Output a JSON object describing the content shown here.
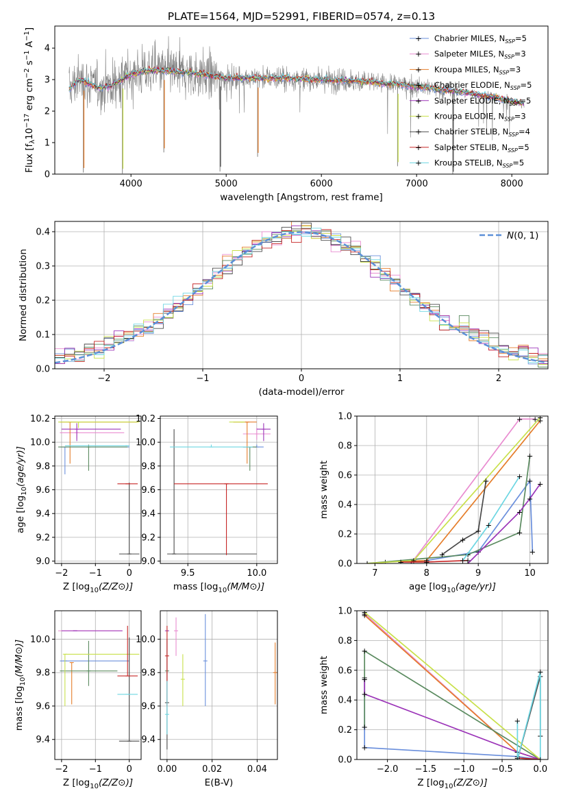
{
  "title": "PLATE=1564, MJD=52991, FIBERID=0574, z=0.13",
  "colors": {
    "Chabrier MILES": "#6a8fdc",
    "Salpeter MILES": "#e98bd0",
    "Kroupa MILES": "#e57d2a",
    "Chabrier ELODIE": "#5a8a5f",
    "Salpeter ELODIE": "#9b33b8",
    "Kroupa ELODIE": "#c8e04a",
    "Chabrier STELIB": "#4a4a4a",
    "Salpeter STELIB": "#c62424",
    "Kroupa STELIB": "#6cd6e2",
    "observed": "#808080"
  },
  "chart_data": [
    {
      "type": "line",
      "xlabel": "wavelength [Angstrom, rest frame]",
      "ylabel": "Flux [f_λ10^-17 erg cm^-2 s^-1 A^-1]",
      "xlim": [
        3200,
        8380
      ],
      "ylim": [
        0,
        4.7
      ],
      "xticks": [
        4000,
        5000,
        6000,
        7000,
        8000
      ],
      "yticks": [
        0,
        1,
        2,
        3,
        4
      ],
      "grid": false,
      "legend_position": "right",
      "legend": [
        "Chabrier MILES, N_SSP=5",
        "Salpeter MILES, N_SSP=3",
        "Kroupa MILES, N_SSP=3",
        "Chabrier ELODIE, N_SSP=5",
        "Salpeter ELODIE, N_SSP=5",
        "Kroupa ELODIE, N_SSP=3",
        "Chabrier STELIB, N_SSP=4",
        "Salpeter STELIB, N_SSP=5",
        "Kroupa STELIB, N_SSP=5"
      ],
      "continuum": {
        "x": [
          3350,
          3450,
          3550,
          3650,
          3800,
          3950,
          4100,
          4300,
          4500,
          4800,
          5000,
          5300,
          5600,
          6000,
          6400,
          6800,
          7200,
          7500,
          7800,
          8100
        ],
        "y": [
          2.7,
          3.0,
          2.9,
          2.75,
          2.8,
          3.1,
          3.25,
          3.3,
          3.25,
          3.15,
          3.05,
          3.05,
          3.05,
          3.0,
          2.95,
          2.85,
          2.7,
          2.6,
          2.45,
          2.25
        ]
      },
      "absorption_spikes": [
        {
          "x": 3500,
          "depth": 2.9
        },
        {
          "x": 3910,
          "depth": 3.0
        },
        {
          "x": 4345,
          "depth": 2.6
        },
        {
          "x": 4935,
          "depth": 3.0
        },
        {
          "x": 5330,
          "depth": 2.5
        },
        {
          "x": 6800,
          "depth": 2.6
        },
        {
          "x": 7380,
          "depth": 2.7
        }
      ]
    },
    {
      "type": "bar",
      "xlabel": "(data-model)/error",
      "ylabel": "Normed distribution",
      "xlim": [
        -2.5,
        2.5
      ],
      "ylim": [
        0,
        0.43
      ],
      "xticks": [
        -2,
        -1,
        0,
        1,
        2
      ],
      "yticks": [
        0.0,
        0.1,
        0.2,
        0.3,
        0.4
      ],
      "grid": true,
      "legend_position": "top-right",
      "legend": [
        "N(0,1)"
      ],
      "bin_width": 0.1,
      "gaussian": {
        "mu": 0,
        "sigma": 1,
        "name": "N(0,1)"
      }
    },
    {
      "type": "scatter",
      "xlabel": "Z [log10(Z/Z⊙)]",
      "ylabel": "age  [log10(age/yr)]",
      "xlim": [
        -2.2,
        0.35
      ],
      "ylim": [
        8.98,
        10.22
      ],
      "xticks": [
        -2,
        -1,
        0
      ],
      "yticks": [
        9.0,
        9.2,
        9.4,
        9.6,
        9.8,
        10.0,
        10.2
      ],
      "grid": true,
      "points": [
        {
          "series": "Chabrier MILES",
          "x": -1.9,
          "xerr": [
            0.15,
            1.9
          ],
          "y": 9.96,
          "yerr": [
            0.23,
            0.0
          ]
        },
        {
          "series": "Salpeter MILES",
          "x": -1.55,
          "xerr": [
            0.5,
            1.4
          ],
          "y": 10.08,
          "yerr": [
            0.05,
            0.05
          ]
        },
        {
          "series": "Kroupa MILES",
          "x": -1.75,
          "xerr": [
            0.3,
            2.0
          ],
          "y": 10.17,
          "yerr": [
            0.35,
            0.0
          ]
        },
        {
          "series": "Chabrier ELODIE",
          "x": -1.2,
          "xerr": [
            0.9,
            1.15
          ],
          "y": 9.96,
          "yerr": [
            0.2,
            0.02
          ]
        },
        {
          "series": "Salpeter ELODIE",
          "x": -1.55,
          "xerr": [
            0.45,
            1.3
          ],
          "y": 10.11,
          "yerr": [
            0.1,
            0.05
          ]
        },
        {
          "series": "Kroupa ELODIE",
          "x": -1.5,
          "xerr": [
            0.6,
            1.8
          ],
          "y": 10.17,
          "yerr": [
            0.05,
            0.0
          ]
        },
        {
          "series": "Chabrier STELIB",
          "x": 0.0,
          "xerr": [
            0.3,
            0.3
          ],
          "y": 9.06,
          "yerr": [
            0.0,
            0.6
          ]
        },
        {
          "series": "Salpeter STELIB",
          "x": -0.05,
          "xerr": [
            0.3,
            0.3
          ],
          "y": 9.65,
          "yerr": [
            0.0,
            0.0
          ]
        },
        {
          "series": "Kroupa STELIB",
          "x": -0.05,
          "xerr": [
            1.85,
            0.0
          ],
          "y": 9.97,
          "yerr": [
            0.0,
            0.0
          ]
        }
      ]
    },
    {
      "type": "scatter",
      "xlabel": "mass [log10(M/M⊙)]",
      "ylabel": "",
      "xlim": [
        9.3,
        10.15
      ],
      "ylim": [
        8.98,
        10.22
      ],
      "xticks": [
        9.5,
        10.0
      ],
      "yticks": [
        9.0,
        9.2,
        9.4,
        9.6,
        9.8,
        10.0,
        10.2
      ],
      "grid": true,
      "points": [
        {
          "series": "Chabrier MILES",
          "x": 10.0,
          "xerr": [
            0.1,
            0.05
          ],
          "y": 9.96,
          "yerr": [
            0.0,
            0.02
          ]
        },
        {
          "series": "Salpeter MILES",
          "x": 10.0,
          "xerr": [
            0.1,
            0.1
          ],
          "y": 10.07,
          "yerr": [
            0.05,
            0.05
          ]
        },
        {
          "series": "Kroupa MILES",
          "x": 9.93,
          "xerr": [
            0.1,
            0.07
          ],
          "y": 10.17,
          "yerr": [
            0.35,
            0.0
          ]
        },
        {
          "series": "Chabrier ELODIE",
          "x": 9.95,
          "xerr": [
            0.05,
            0.05
          ],
          "y": 9.96,
          "yerr": [
            0.2,
            0.0
          ]
        },
        {
          "series": "Salpeter ELODIE",
          "x": 10.05,
          "xerr": [
            0.05,
            0.05
          ],
          "y": 10.11,
          "yerr": [
            0.1,
            0.05
          ]
        },
        {
          "series": "Kroupa ELODIE",
          "x": 9.9,
          "xerr": [
            0.1,
            0.0
          ],
          "y": 10.17,
          "yerr": [
            0.0,
            0.0
          ]
        },
        {
          "series": "Chabrier STELIB",
          "x": 9.4,
          "xerr": [
            0.05,
            0.6
          ],
          "y": 9.06,
          "yerr": [
            0.0,
            1.05
          ]
        },
        {
          "series": "Salpeter STELIB",
          "x": 9.78,
          "xerr": [
            0.38,
            0.3
          ],
          "y": 9.65,
          "yerr": [
            0.6,
            0.0
          ]
        },
        {
          "series": "Kroupa STELIB",
          "x": 9.67,
          "xerr": [
            0.3,
            0.3
          ],
          "y": 9.96,
          "yerr": [
            0.0,
            0.02
          ]
        }
      ]
    },
    {
      "type": "line",
      "xlabel": "age  [log10(age/yr)]",
      "ylabel": "mass weight",
      "xlim": [
        6.65,
        10.35
      ],
      "ylim": [
        0,
        1.0
      ],
      "xticks": [
        7,
        8,
        9,
        10
      ],
      "yticks": [
        0.0,
        0.2,
        0.4,
        0.6,
        0.8,
        1.0
      ],
      "grid": true,
      "series": [
        {
          "name": "Chabrier MILES",
          "x": [
            7.5,
            8.0,
            9.0,
            10.0,
            10.05
          ],
          "y": [
            0.01,
            0.02,
            0.08,
            0.56,
            0.08
          ]
        },
        {
          "name": "Salpeter MILES",
          "x": [
            7.7,
            9.8,
            10.1
          ],
          "y": [
            0.0,
            0.98,
            0.98
          ]
        },
        {
          "name": "Kroupa MILES",
          "x": [
            7.2,
            8.0,
            10.2
          ],
          "y": [
            0.01,
            0.02,
            0.97
          ]
        },
        {
          "name": "Chabrier ELODIE",
          "x": [
            6.85,
            8.8,
            9.8,
            10.0
          ],
          "y": [
            0.0,
            0.06,
            0.21,
            0.73
          ]
        },
        {
          "name": "Salpeter ELODIE",
          "x": [
            8.8,
            9.8,
            10.0,
            10.2
          ],
          "y": [
            0.0,
            0.35,
            0.44,
            0.54
          ]
        },
        {
          "name": "Kroupa ELODIE",
          "x": [
            6.85,
            7.75,
            10.2
          ],
          "y": [
            0.0,
            0.02,
            0.99
          ]
        },
        {
          "name": "Chabrier STELIB",
          "x": [
            8.3,
            8.7,
            9.0,
            9.15
          ],
          "y": [
            0.06,
            0.16,
            0.22,
            0.56
          ]
        },
        {
          "name": "Salpeter STELIB",
          "x": [
            7.5,
            8.0,
            8.8
          ],
          "y": [
            0.01,
            0.01,
            0.02
          ]
        },
        {
          "name": "Kroupa STELIB",
          "x": [
            8.7,
            9.2,
            9.8
          ],
          "y": [
            0.02,
            0.26,
            0.59
          ]
        }
      ]
    },
    {
      "type": "scatter",
      "xlabel": "Z [log10(Z/Z⊙)]",
      "ylabel": "mass [log10(M/M⊙)]",
      "xlim": [
        -2.2,
        0.35
      ],
      "ylim": [
        9.28,
        10.17
      ],
      "xticks": [
        -2,
        -1,
        0
      ],
      "yticks": [
        9.4,
        9.6,
        9.8,
        10.0
      ],
      "grid": true,
      "points": [
        {
          "series": "Chabrier MILES",
          "x": -1.9,
          "xerr": [
            0.15,
            1.9
          ],
          "y": 9.87,
          "yerr": [
            0.0,
            0.0
          ]
        },
        {
          "series": "Salpeter MILES",
          "x": -1.6,
          "xerr": [
            0.5,
            1.4
          ],
          "y": 10.05,
          "yerr": [
            0.0,
            0.0
          ]
        },
        {
          "series": "Kroupa MILES",
          "x": -1.7,
          "xerr": [
            0.0,
            0.0
          ],
          "y": 9.86,
          "yerr": [
            0.25,
            0.0
          ]
        },
        {
          "series": "Chabrier ELODIE",
          "x": -1.2,
          "xerr": [
            0.85,
            0.85
          ],
          "y": 9.81,
          "yerr": [
            0.09,
            0.18
          ]
        },
        {
          "series": "Salpeter ELODIE",
          "x": -1.6,
          "xerr": [
            0.4,
            1.4
          ],
          "y": 10.05,
          "yerr": [
            0.0,
            0.0
          ]
        },
        {
          "series": "Kroupa ELODIE",
          "x": -1.9,
          "xerr": [
            0.0,
            2.2
          ],
          "y": 9.91,
          "yerr": [
            0.31,
            0.0
          ]
        },
        {
          "series": "Chabrier STELIB",
          "x": 0.0,
          "xerr": [
            0.3,
            0.3
          ],
          "y": 9.39,
          "yerr": [
            0.0,
            0.62
          ]
        },
        {
          "series": "Salpeter STELIB",
          "x": -0.05,
          "xerr": [
            0.3,
            0.3
          ],
          "y": 9.78,
          "yerr": [
            0.0,
            0.3
          ]
        },
        {
          "series": "Kroupa STELIB",
          "x": -0.05,
          "xerr": [
            0.3,
            0.3
          ],
          "y": 9.67,
          "yerr": [
            0.0,
            0.0
          ]
        }
      ]
    },
    {
      "type": "scatter",
      "xlabel": "E(B-V)",
      "ylabel": "",
      "xlim": [
        -0.003,
        0.049
      ],
      "ylim": [
        9.28,
        10.17
      ],
      "xticks": [
        0.0,
        0.02,
        0.04
      ],
      "yticks": [
        9.4,
        9.6,
        9.8,
        10.0
      ],
      "grid": true,
      "points": [
        {
          "series": "Chabrier MILES",
          "x": 0.017,
          "xerr": [
            0.0,
            0.0
          ],
          "y": 9.87,
          "yerr": [
            0.27,
            0.28
          ]
        },
        {
          "series": "Salpeter MILES",
          "x": 0.004,
          "xerr": [
            0.0,
            0.0
          ],
          "y": 10.05,
          "yerr": [
            0.15,
            0.08
          ]
        },
        {
          "series": "Kroupa MILES",
          "x": 0.048,
          "xerr": [
            0.0,
            0.0
          ],
          "y": 9.8,
          "yerr": [
            0.19,
            0.18
          ]
        },
        {
          "series": "Chabrier ELODIE",
          "x": 0.0,
          "xerr": [
            0.0,
            0.0
          ],
          "y": 9.81,
          "yerr": [
            0.0,
            0.0
          ]
        },
        {
          "series": "Salpeter ELODIE",
          "x": 0.0,
          "xerr": [
            0.0,
            0.0
          ],
          "y": 10.05,
          "yerr": [
            0.0,
            0.0
          ]
        },
        {
          "series": "Kroupa ELODIE",
          "x": 0.007,
          "xerr": [
            0.0,
            0.0
          ],
          "y": 9.76,
          "yerr": [
            0.16,
            0.15
          ]
        },
        {
          "series": "Chabrier STELIB",
          "x": 0.0,
          "xerr": [
            0.0,
            0.0
          ],
          "y": 9.62,
          "yerr": [
            0.28,
            0.38
          ]
        },
        {
          "series": "Salpeter STELIB",
          "x": 0.0,
          "xerr": [
            0.0,
            0.0
          ],
          "y": 9.9,
          "yerr": [
            0.3,
            0.18
          ]
        },
        {
          "series": "Kroupa STELIB",
          "x": 0.0,
          "xerr": [
            0.0,
            0.0
          ],
          "y": 9.55,
          "yerr": [
            0.12,
            0.2
          ]
        }
      ]
    },
    {
      "type": "line",
      "xlabel": "Z [log10(Z/Z⊙)]",
      "ylabel": "mass weight",
      "xlim": [
        -2.4,
        0.1
      ],
      "ylim": [
        0,
        1.0
      ],
      "xticks": [
        -2.0,
        -1.5,
        -1.0,
        -0.5,
        0.0
      ],
      "yticks": [
        0.0,
        0.2,
        0.4,
        0.6,
        0.8,
        1.0
      ],
      "grid": true,
      "series": [
        {
          "name": "Chabrier MILES",
          "x": [
            -2.3,
            -2.3,
            -0.3,
            0.0
          ],
          "y": [
            0.55,
            0.08,
            0.02,
            0.0
          ]
        },
        {
          "name": "Salpeter MILES",
          "x": [
            -2.3,
            -0.3,
            0.0
          ],
          "y": [
            0.98,
            0.05,
            0.0
          ]
        },
        {
          "name": "Kroupa MILES",
          "x": [
            -2.3,
            -0.3,
            0.0
          ],
          "y": [
            0.97,
            0.05,
            0.0
          ]
        },
        {
          "name": "Chabrier ELODIE",
          "x": [
            -2.3,
            -2.3,
            0.0
          ],
          "y": [
            0.22,
            0.73,
            0.0
          ]
        },
        {
          "name": "Salpeter ELODIE",
          "x": [
            -2.3,
            -2.3,
            -0.3,
            0.0
          ],
          "y": [
            0.54,
            0.44,
            0.05,
            0.0
          ]
        },
        {
          "name": "Kroupa ELODIE",
          "x": [
            -2.3,
            0.0
          ],
          "y": [
            0.99,
            0.0
          ]
        },
        {
          "name": "Chabrier STELIB",
          "x": [
            -0.3,
            0.0,
            0.0
          ],
          "y": [
            0.0,
            0.56,
            0.16
          ]
        },
        {
          "name": "Salpeter STELIB",
          "x": [
            -0.3,
            0.0
          ],
          "y": [
            0.01,
            0.0
          ]
        },
        {
          "name": "Kroupa STELIB",
          "x": [
            -0.3,
            -0.3,
            0.0,
            0.0
          ],
          "y": [
            0.26,
            0.0,
            0.59,
            0.0
          ]
        }
      ]
    }
  ]
}
